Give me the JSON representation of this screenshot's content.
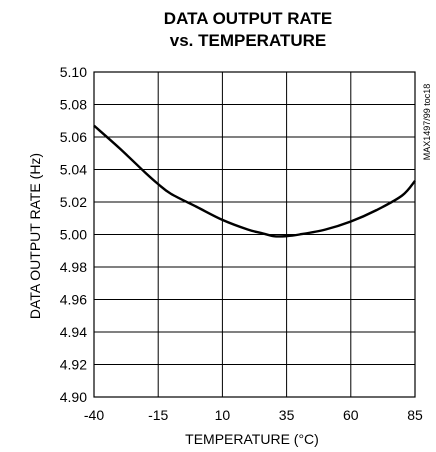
{
  "chart_data": {
    "type": "line",
    "title_line1": "DATA OUTPUT RATE",
    "title_line2": "vs. TEMPERATURE",
    "xlabel": "TEMPERATURE (°C)",
    "ylabel": "DATA OUTPUT RATE (Hz)",
    "side_note": "MAX1497/99 toc18",
    "xlim": [
      -40,
      85
    ],
    "ylim": [
      4.9,
      5.1
    ],
    "x_ticks": [
      -40,
      -15,
      10,
      35,
      60,
      85
    ],
    "x_tick_labels": [
      "-40",
      "-15",
      "10",
      "35",
      "60",
      "85"
    ],
    "y_ticks": [
      4.9,
      4.92,
      4.94,
      4.96,
      4.98,
      5.0,
      5.02,
      5.04,
      5.06,
      5.08,
      5.1
    ],
    "y_tick_labels": [
      "4.90",
      "4.92",
      "4.94",
      "4.96",
      "4.98",
      "5.00",
      "5.02",
      "5.04",
      "5.06",
      "5.08",
      "5.10"
    ],
    "grid": true,
    "series": [
      {
        "x": [
          -40,
          -30,
          -20,
          -15,
          -10,
          0,
          10,
          20,
          25,
          30,
          35,
          40,
          50,
          60,
          70,
          80,
          85
        ],
        "y": [
          5.067,
          5.053,
          5.038,
          5.031,
          5.025,
          5.017,
          5.009,
          5.003,
          5.001,
          4.999,
          4.999,
          5.0,
          5.003,
          5.008,
          5.015,
          5.024,
          5.033
        ]
      }
    ]
  }
}
